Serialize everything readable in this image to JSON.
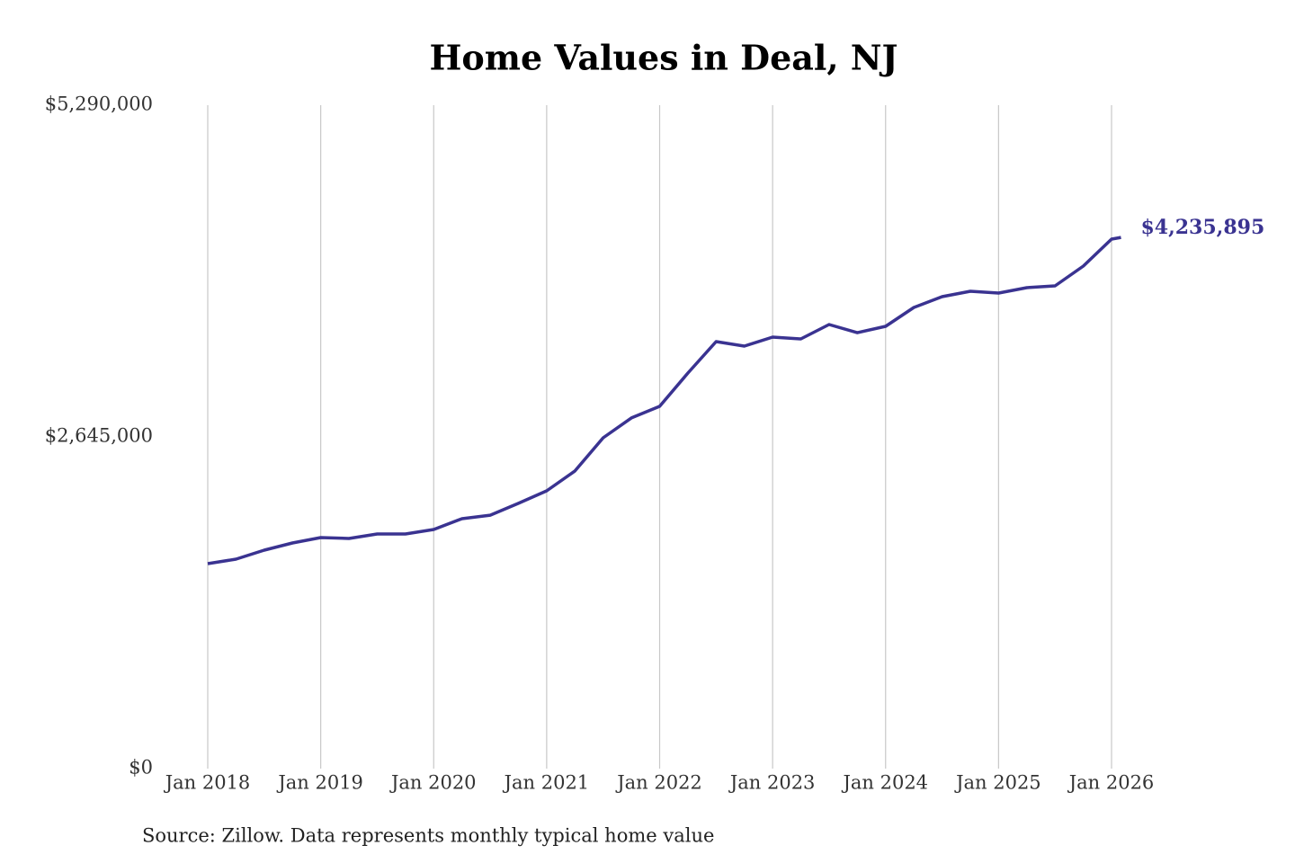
{
  "chart_data": {
    "type": "line",
    "title": "Home Values in Deal, NJ",
    "source": "Source: Zillow. Data represents monthly typical home value",
    "x": [
      "2018-01",
      "2018-04",
      "2018-07",
      "2018-10",
      "2019-01",
      "2019-04",
      "2019-07",
      "2019-10",
      "2020-01",
      "2020-04",
      "2020-07",
      "2020-10",
      "2021-01",
      "2021-04",
      "2021-07",
      "2021-10",
      "2022-01",
      "2022-04",
      "2022-07",
      "2022-10",
      "2023-01",
      "2023-04",
      "2023-07",
      "2023-10",
      "2024-01",
      "2024-04",
      "2024-07",
      "2024-10",
      "2025-01",
      "2025-04",
      "2025-07",
      "2025-10",
      "2026-01",
      "2026-02"
    ],
    "series": [
      {
        "name": "Deal, NJ",
        "color": "#3a3391",
        "values": [
          1634000,
          1670000,
          1742000,
          1799000,
          1842000,
          1835000,
          1871000,
          1871000,
          1907000,
          1993000,
          2021000,
          2115000,
          2215000,
          2373000,
          2638000,
          2796000,
          2889000,
          3154000,
          3405000,
          3369000,
          3441000,
          3426000,
          3541000,
          3476000,
          3527000,
          3677000,
          3763000,
          3806000,
          3792000,
          3835000,
          3849000,
          4007000,
          4222000,
          4235895
        ],
        "value_labels": [
          null,
          null,
          null,
          null,
          null,
          null,
          null,
          null,
          null,
          null,
          null,
          null,
          null,
          null,
          null,
          null,
          null,
          null,
          null,
          null,
          null,
          null,
          null,
          null,
          null,
          null,
          null,
          null,
          null,
          null,
          null,
          null,
          null,
          "$4,235,895"
        ]
      }
    ],
    "ylim": [
      0,
      5290000
    ],
    "yticks": [
      {
        "value": 0,
        "label": "$0"
      },
      {
        "value": 2645000,
        "label": "$2,645,000"
      },
      {
        "value": 5290000,
        "label": "$5,290,000"
      }
    ],
    "xticks": [
      {
        "value": "2018-01",
        "label": "Jan 2018"
      },
      {
        "value": "2019-01",
        "label": "Jan 2019"
      },
      {
        "value": "2020-01",
        "label": "Jan 2020"
      },
      {
        "value": "2021-01",
        "label": "Jan 2021"
      },
      {
        "value": "2022-01",
        "label": "Jan 2022"
      },
      {
        "value": "2023-01",
        "label": "Jan 2023"
      },
      {
        "value": "2024-01",
        "label": "Jan 2024"
      },
      {
        "value": "2025-01",
        "label": "Jan 2025"
      },
      {
        "value": "2026-01",
        "label": "Jan 2026"
      }
    ],
    "grid": "x"
  }
}
